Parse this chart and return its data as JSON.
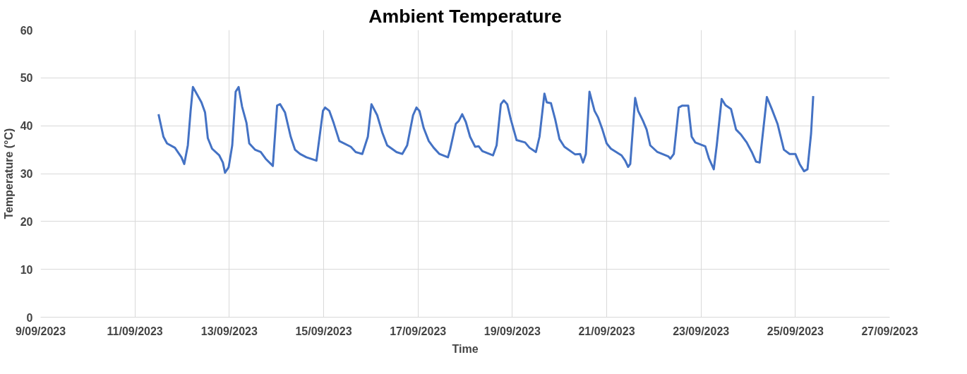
{
  "chart_data": {
    "type": "line",
    "title": "Ambient Temperature",
    "xlabel": "Time",
    "ylabel": "Temperature (°C)",
    "x": [
      "2023-09-11T12:00",
      "2023-09-11T14:30",
      "2023-09-11T16:20",
      "2023-09-11T20:20",
      "2023-09-11T23:40",
      "2023-09-12T01:05",
      "2023-09-12T02:55",
      "2023-09-12T04:20",
      "2023-09-12T05:30",
      "2023-09-12T09:50",
      "2023-09-12T11:40",
      "2023-09-12T13:05",
      "2023-09-12T15:15",
      "2023-09-12T18:55",
      "2023-09-12T20:45",
      "2023-09-12T21:50",
      "2023-09-12T23:40",
      "2023-09-13T01:30",
      "2023-09-13T03:15",
      "2023-09-13T04:45",
      "2023-09-13T06:30",
      "2023-09-13T08:45",
      "2023-09-13T10:10",
      "2023-09-13T13:05",
      "2023-09-13T16:00",
      "2023-09-13T18:30",
      "2023-09-13T22:10",
      "2023-09-14T00:20",
      "2023-09-14T01:50",
      "2023-09-14T04:20",
      "2023-09-14T07:15",
      "2023-09-14T09:25",
      "2023-09-14T12:00",
      "2023-09-14T15:15",
      "2023-09-14T20:20",
      "2023-09-14T23:40",
      "2023-09-15T00:45",
      "2023-09-15T02:55",
      "2023-09-15T05:05",
      "2023-09-15T08:00",
      "2023-09-15T13:50",
      "2023-09-15T16:20",
      "2023-09-15T19:40",
      "2023-09-15T22:30",
      "2023-09-16T00:20",
      "2023-09-16T03:15",
      "2023-09-16T05:50",
      "2023-09-16T08:20",
      "2023-09-16T13:05",
      "2023-09-16T16:00",
      "2023-09-16T18:30",
      "2023-09-16T21:30",
      "2023-09-16T23:15",
      "2023-09-17T00:45",
      "2023-09-17T02:55",
      "2023-09-17T05:30",
      "2023-09-17T08:00",
      "2023-09-17T10:55",
      "2023-09-17T15:15",
      "2023-09-17T16:20",
      "2023-09-17T19:15",
      "2023-09-17T20:45",
      "2023-09-17T22:30",
      "2023-09-18T00:20",
      "2023-09-18T02:30",
      "2023-09-18T05:05",
      "2023-09-18T06:55",
      "2023-09-18T08:45",
      "2023-09-18T14:10",
      "2023-09-18T16:00",
      "2023-09-18T18:10",
      "2023-09-18T19:40",
      "2023-09-18T21:25",
      "2023-09-18T23:15",
      "2023-09-19T02:10",
      "2023-09-19T06:30",
      "2023-09-19T08:45",
      "2023-09-19T12:00",
      "2023-09-19T13:50",
      "2023-09-19T16:20",
      "2023-09-19T17:30",
      "2023-09-19T19:40",
      "2023-09-19T21:50",
      "2023-09-20T00:00",
      "2023-09-20T02:30",
      "2023-09-20T08:00",
      "2023-09-20T10:30",
      "2023-09-20T12:00",
      "2023-09-20T13:25",
      "2023-09-20T15:15",
      "2023-09-20T17:50",
      "2023-09-20T19:40",
      "2023-09-20T21:50",
      "2023-09-21T00:00",
      "2023-09-21T02:10",
      "2023-09-21T07:35",
      "2023-09-21T09:25",
      "2023-09-21T10:55",
      "2023-09-21T12:00",
      "2023-09-21T14:30",
      "2023-09-21T16:00",
      "2023-09-21T18:30",
      "2023-09-21T20:20",
      "2023-09-21T22:10",
      "2023-09-22T01:50",
      "2023-09-22T07:20",
      "2023-09-22T08:25",
      "2023-09-22T10:10",
      "2023-09-22T12:40",
      "2023-09-22T14:30",
      "2023-09-22T17:30",
      "2023-09-22T19:15",
      "2023-09-22T21:05",
      "2023-09-23T02:10",
      "2023-09-23T04:00",
      "2023-09-23T06:30",
      "2023-09-23T08:00",
      "2023-09-23T10:30",
      "2023-09-23T12:25",
      "2023-09-23T15:15",
      "2023-09-23T17:50",
      "2023-09-23T20:25",
      "2023-09-23T23:15",
      "2023-09-24T01:50",
      "2023-09-24T04:00",
      "2023-09-24T05:50",
      "2023-09-24T09:30",
      "2023-09-24T12:00",
      "2023-09-24T14:55",
      "2023-09-24T18:10",
      "2023-09-24T21:05",
      "2023-09-25T00:00",
      "2023-09-25T02:10",
      "2023-09-25T04:25",
      "2023-09-25T06:10",
      "2023-09-25T08:00",
      "2023-09-25T09:05"
    ],
    "series": [
      {
        "color": "#4472c4",
        "values": [
          42.4,
          37.7,
          36.3,
          35.4,
          33.4,
          32.0,
          35.9,
          43.1,
          48.1,
          44.9,
          42.8,
          37.4,
          35.2,
          33.8,
          32.3,
          30.2,
          31.3,
          35.9,
          47.1,
          48.1,
          44.0,
          40.6,
          36.3,
          35.0,
          34.5,
          33.1,
          31.6,
          44.2,
          44.5,
          42.8,
          37.7,
          35.0,
          34.1,
          33.4,
          32.7,
          43.1,
          43.8,
          43.1,
          40.6,
          36.8,
          35.6,
          34.5,
          34.1,
          37.7,
          44.5,
          42.2,
          38.6,
          35.9,
          34.5,
          34.1,
          35.9,
          42.2,
          43.8,
          43.1,
          39.5,
          36.8,
          35.4,
          34.1,
          33.4,
          35.0,
          40.4,
          41.0,
          42.4,
          40.8,
          37.7,
          35.6,
          35.7,
          34.7,
          33.8,
          35.9,
          44.5,
          45.3,
          44.5,
          41.3,
          37.0,
          36.5,
          35.4,
          34.5,
          37.7,
          46.7,
          44.9,
          44.7,
          41.3,
          37.2,
          35.6,
          34.0,
          34.1,
          32.3,
          34.1,
          47.1,
          43.1,
          41.7,
          39.2,
          36.3,
          35.2,
          33.8,
          32.7,
          31.4,
          32.0,
          45.8,
          43.1,
          41.0,
          39.2,
          35.9,
          34.5,
          33.6,
          33.1,
          34.1,
          43.8,
          44.2,
          44.2,
          37.7,
          36.5,
          35.7,
          33.2,
          30.9,
          35.9,
          45.6,
          44.3,
          43.5,
          39.2,
          38.1,
          36.5,
          34.5,
          32.5,
          32.3,
          46.0,
          43.5,
          40.4,
          35.0,
          34.1,
          34.1,
          32.0,
          30.5,
          30.9,
          38.4,
          46.2
        ]
      }
    ],
    "xlim": [
      "2023-09-09",
      "2023-09-27"
    ],
    "xticks": [
      {
        "value": "2023-09-09",
        "label": "9/09/2023"
      },
      {
        "value": "2023-09-11",
        "label": "11/09/2023"
      },
      {
        "value": "2023-09-13",
        "label": "13/09/2023"
      },
      {
        "value": "2023-09-15",
        "label": "15/09/2023"
      },
      {
        "value": "2023-09-17",
        "label": "17/09/2023"
      },
      {
        "value": "2023-09-19",
        "label": "19/09/2023"
      },
      {
        "value": "2023-09-21",
        "label": "21/09/2023"
      },
      {
        "value": "2023-09-23",
        "label": "23/09/2023"
      },
      {
        "value": "2023-09-25",
        "label": "25/09/2023"
      },
      {
        "value": "2023-09-27",
        "label": "27/09/2023"
      }
    ],
    "ylim": [
      0,
      60
    ],
    "yticks": [
      0,
      10,
      20,
      30,
      40,
      50,
      60
    ],
    "grid": true,
    "marker": "none",
    "line_style": "solid"
  }
}
